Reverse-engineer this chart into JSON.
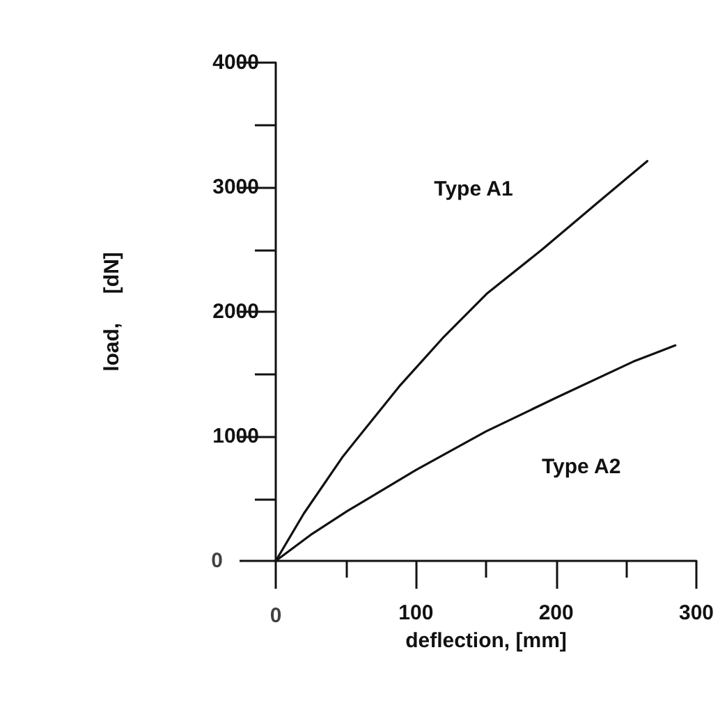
{
  "chart_data": {
    "type": "line",
    "xlabel": "deflection, [mm]",
    "ylabel": "load,     [dN]",
    "xlim": [
      0,
      300
    ],
    "ylim": [
      0,
      4000
    ],
    "xticks": [
      0,
      {
        "value": 50,
        "label": null
      },
      100,
      {
        "value": 150,
        "label": null
      },
      200,
      {
        "value": 250,
        "label": null
      },
      300
    ],
    "yticks": [
      0,
      {
        "value": 500,
        "label": null
      },
      1000,
      {
        "value": 1500,
        "label": null
      },
      2000,
      {
        "value": 2500,
        "label": null
      },
      3000,
      {
        "value": 3500,
        "label": null
      },
      4000
    ],
    "grid": false,
    "marker": "none",
    "line_style": "solid",
    "series": [
      {
        "name": "Type A1",
        "color": "#111111",
        "x": [
          0,
          20,
          48,
          88,
          120,
          151,
          190,
          230,
          265
        ],
        "values": [
          0,
          380,
          840,
          1400,
          1800,
          2150,
          2500,
          2880,
          3210
        ]
      },
      {
        "name": "Type A2",
        "color": "#111111",
        "x": [
          0,
          25,
          51,
          100,
          150,
          200,
          255,
          285
        ],
        "values": [
          0,
          210,
          400,
          730,
          1040,
          1310,
          1600,
          1730
        ]
      }
    ]
  }
}
